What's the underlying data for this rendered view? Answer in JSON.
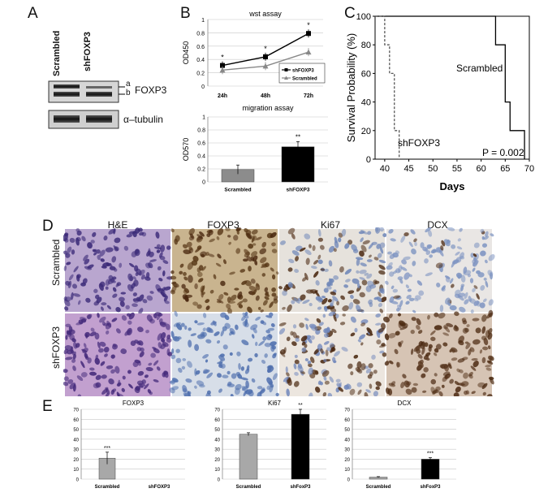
{
  "panel_letters": {
    "a": "A",
    "b": "B",
    "c": "C",
    "d": "D",
    "e": "E"
  },
  "panel_a": {
    "lanes": [
      "Scrambled",
      "shFOXP3"
    ],
    "band_marks": [
      "a",
      "b"
    ],
    "blots": [
      "FOXP3",
      "α–tubulin"
    ]
  },
  "histology": {
    "columns": [
      "H&E",
      "FOXP3",
      "Ki67",
      "DCX"
    ],
    "rows": [
      "Scrambled",
      "shFOXP3"
    ]
  },
  "chart_data": [
    {
      "id": "wst",
      "type": "line",
      "title": "wst assay",
      "ylabel": "OD450",
      "categories": [
        "24h",
        "48h",
        "72h"
      ],
      "ylim": [
        0,
        1
      ],
      "yticks": [
        "0",
        "0.2",
        "0.4",
        "0.6",
        "0.8",
        "1"
      ],
      "grid": true,
      "legend": "bottom-right",
      "series": [
        {
          "name": "shFOXP3",
          "values": [
            0.31,
            0.44,
            0.79
          ],
          "color": "#000000",
          "marker": "square"
        },
        {
          "name": "Scrambled",
          "values": [
            0.24,
            0.3,
            0.51
          ],
          "color": "#888888",
          "marker": "triangle"
        }
      ],
      "annotations": [
        "*",
        "*",
        "*"
      ]
    },
    {
      "id": "migration",
      "type": "bar",
      "title": "migration assay",
      "ylabel": "OD570",
      "categories": [
        "Scrambled",
        "shFOXP3"
      ],
      "values": [
        0.19,
        0.54
      ],
      "errors": [
        0.07,
        0.08
      ],
      "colors": [
        "#8c8c8c",
        "#000000"
      ],
      "ylim": [
        0,
        1
      ],
      "yticks": [
        "0",
        "0.2",
        "0.4",
        "0.6",
        "0.8",
        "1"
      ],
      "annotations": [
        "",
        "**"
      ]
    },
    {
      "id": "survival",
      "type": "line",
      "ylabel": "Survival Probability (%)",
      "xlabel": "Days",
      "xlim": [
        38,
        70
      ],
      "ylim": [
        0,
        100
      ],
      "xticks": [
        "40",
        "45",
        "50",
        "55",
        "60",
        "65",
        "70"
      ],
      "yticks": [
        "0",
        "20",
        "40",
        "60",
        "80",
        "100"
      ],
      "series": [
        {
          "name": "Scrambled",
          "steps": [
            [
              38,
              100
            ],
            [
              63,
              100
            ],
            [
              63,
              80
            ],
            [
              65,
              80
            ],
            [
              65,
              40
            ],
            [
              66,
              40
            ],
            [
              66,
              20
            ],
            [
              69,
              20
            ],
            [
              69,
              0
            ]
          ],
          "style": "solid"
        },
        {
          "name": "shFOXP3",
          "steps": [
            [
              38,
              100
            ],
            [
              40,
              100
            ],
            [
              40,
              80
            ],
            [
              41,
              80
            ],
            [
              41,
              60
            ],
            [
              42,
              60
            ],
            [
              42,
              20
            ],
            [
              43,
              20
            ],
            [
              43,
              0
            ]
          ],
          "style": "dashed"
        }
      ],
      "annotations": [
        "Scrambled",
        "shFOXP3",
        "P = 0.002"
      ]
    },
    {
      "id": "e_foxp3",
      "type": "bar",
      "title": "FOXP3",
      "categories": [
        "Scrambled",
        "shFOXP3"
      ],
      "values": [
        21,
        0
      ],
      "errors": [
        6,
        0
      ],
      "colors": [
        "#a8a8a8",
        "#000000"
      ],
      "ylim": [
        0,
        70
      ],
      "yticks": [
        "0",
        "10",
        "20",
        "30",
        "40",
        "50",
        "60",
        "70"
      ],
      "annotations": [
        "***",
        ""
      ]
    },
    {
      "id": "e_ki67",
      "type": "bar",
      "title": "Ki67",
      "categories": [
        "Scrambled",
        "shFoxP3"
      ],
      "values": [
        45,
        65
      ],
      "errors": [
        1.5,
        5
      ],
      "colors": [
        "#a8a8a8",
        "#000000"
      ],
      "ylim": [
        0,
        70
      ],
      "yticks": [
        "0",
        "10",
        "20",
        "30",
        "40",
        "50",
        "60",
        "70"
      ],
      "annotations": [
        "",
        "**"
      ]
    },
    {
      "id": "e_dcx",
      "type": "bar",
      "title": "DCX",
      "categories": [
        "Scrambled",
        "shFoxP3"
      ],
      "values": [
        2,
        20
      ],
      "errors": [
        0.5,
        1.5
      ],
      "colors": [
        "#a8a8a8",
        "#000000"
      ],
      "ylim": [
        0,
        70
      ],
      "yticks": [
        "0",
        "10",
        "20",
        "30",
        "40",
        "50",
        "60",
        "70"
      ],
      "annotations": [
        "",
        "***"
      ]
    }
  ]
}
